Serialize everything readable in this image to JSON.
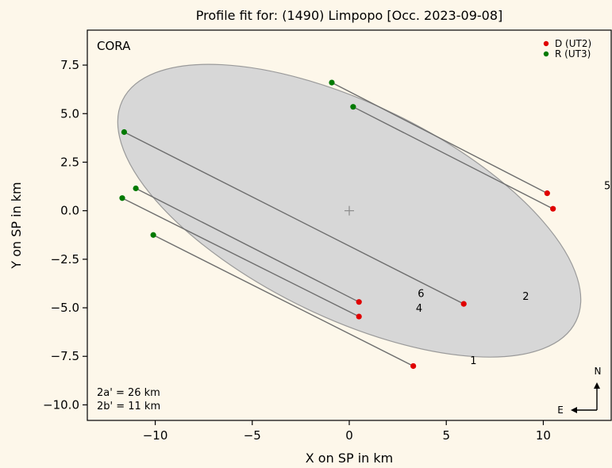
{
  "chart_data": {
    "type": "scatter",
    "title": "Profile fit for: (1490) Limpopo [Occ. 2023-09-08]",
    "xlabel": "X on SP in km",
    "ylabel": "Y on SP in km",
    "xlim": [
      -13.5,
      13.5
    ],
    "ylim": [
      -10.8,
      9.3
    ],
    "xticks": [
      -10,
      -5,
      0,
      5,
      10
    ],
    "xtick_labels": [
      "−10",
      "−5",
      "0",
      "5",
      "10"
    ],
    "yticks": [
      -10.0,
      -7.5,
      -5.0,
      -2.5,
      0.0,
      2.5,
      5.0,
      7.5
    ],
    "ytick_labels": [
      "−10.0",
      "−7.5",
      "−5.0",
      "−2.5",
      "0.0",
      "2.5",
      "5.0",
      "7.5"
    ],
    "grid": false,
    "legend_position": "top-right",
    "observer_label": "CORA",
    "ellipse": {
      "center": [
        0,
        0
      ],
      "semi_major": 13,
      "semi_minor": 5.5,
      "angle_deg": -26,
      "fill": "#d7d7d7",
      "stroke": "#9a9a9a"
    },
    "center_marker": [
      0,
      0
    ],
    "fit_text": [
      "2a'  =  26 km",
      "2b'  =  11 km"
    ],
    "series": [
      {
        "name": "D (UT2)",
        "color": "#e00000",
        "points": [
          [
            10.2,
            0.9
          ],
          [
            10.5,
            0.1
          ],
          [
            5.9,
            -4.8
          ],
          [
            0.5,
            -4.7
          ],
          [
            0.5,
            -5.45
          ],
          [
            3.3,
            -8.0
          ]
        ]
      },
      {
        "name": "R (UT3)",
        "color": "#007a00",
        "points": [
          [
            -0.9,
            6.6
          ],
          [
            0.2,
            5.35
          ],
          [
            -11.6,
            4.05
          ],
          [
            -11.0,
            1.15
          ],
          [
            -11.7,
            0.65
          ],
          [
            -10.1,
            -1.25
          ]
        ]
      }
    ],
    "chords": [
      {
        "from": [
          -0.9,
          6.6
        ],
        "to": [
          10.2,
          0.9
        ]
      },
      {
        "from": [
          0.2,
          5.35
        ],
        "to": [
          10.5,
          0.1
        ]
      },
      {
        "from": [
          -11.6,
          4.05
        ],
        "to": [
          5.9,
          -4.8
        ]
      },
      {
        "from": [
          -11.0,
          1.15
        ],
        "to": [
          0.5,
          -4.7
        ]
      },
      {
        "from": [
          -11.7,
          0.65
        ],
        "to": [
          0.5,
          -5.45
        ]
      },
      {
        "from": [
          -10.1,
          -1.25
        ],
        "to": [
          3.3,
          -8.0
        ]
      }
    ],
    "chord_labels": [
      {
        "text": "1",
        "x": 6.4,
        "y": -7.9
      },
      {
        "text": "2",
        "x": 9.1,
        "y": -4.6
      },
      {
        "text": "4",
        "x": 3.6,
        "y": -5.2
      },
      {
        "text": "5",
        "x": 13.3,
        "y": 1.1
      },
      {
        "text": "6",
        "x": 3.7,
        "y": -4.45
      }
    ],
    "compass": {
      "north": "N",
      "east": "E"
    }
  }
}
